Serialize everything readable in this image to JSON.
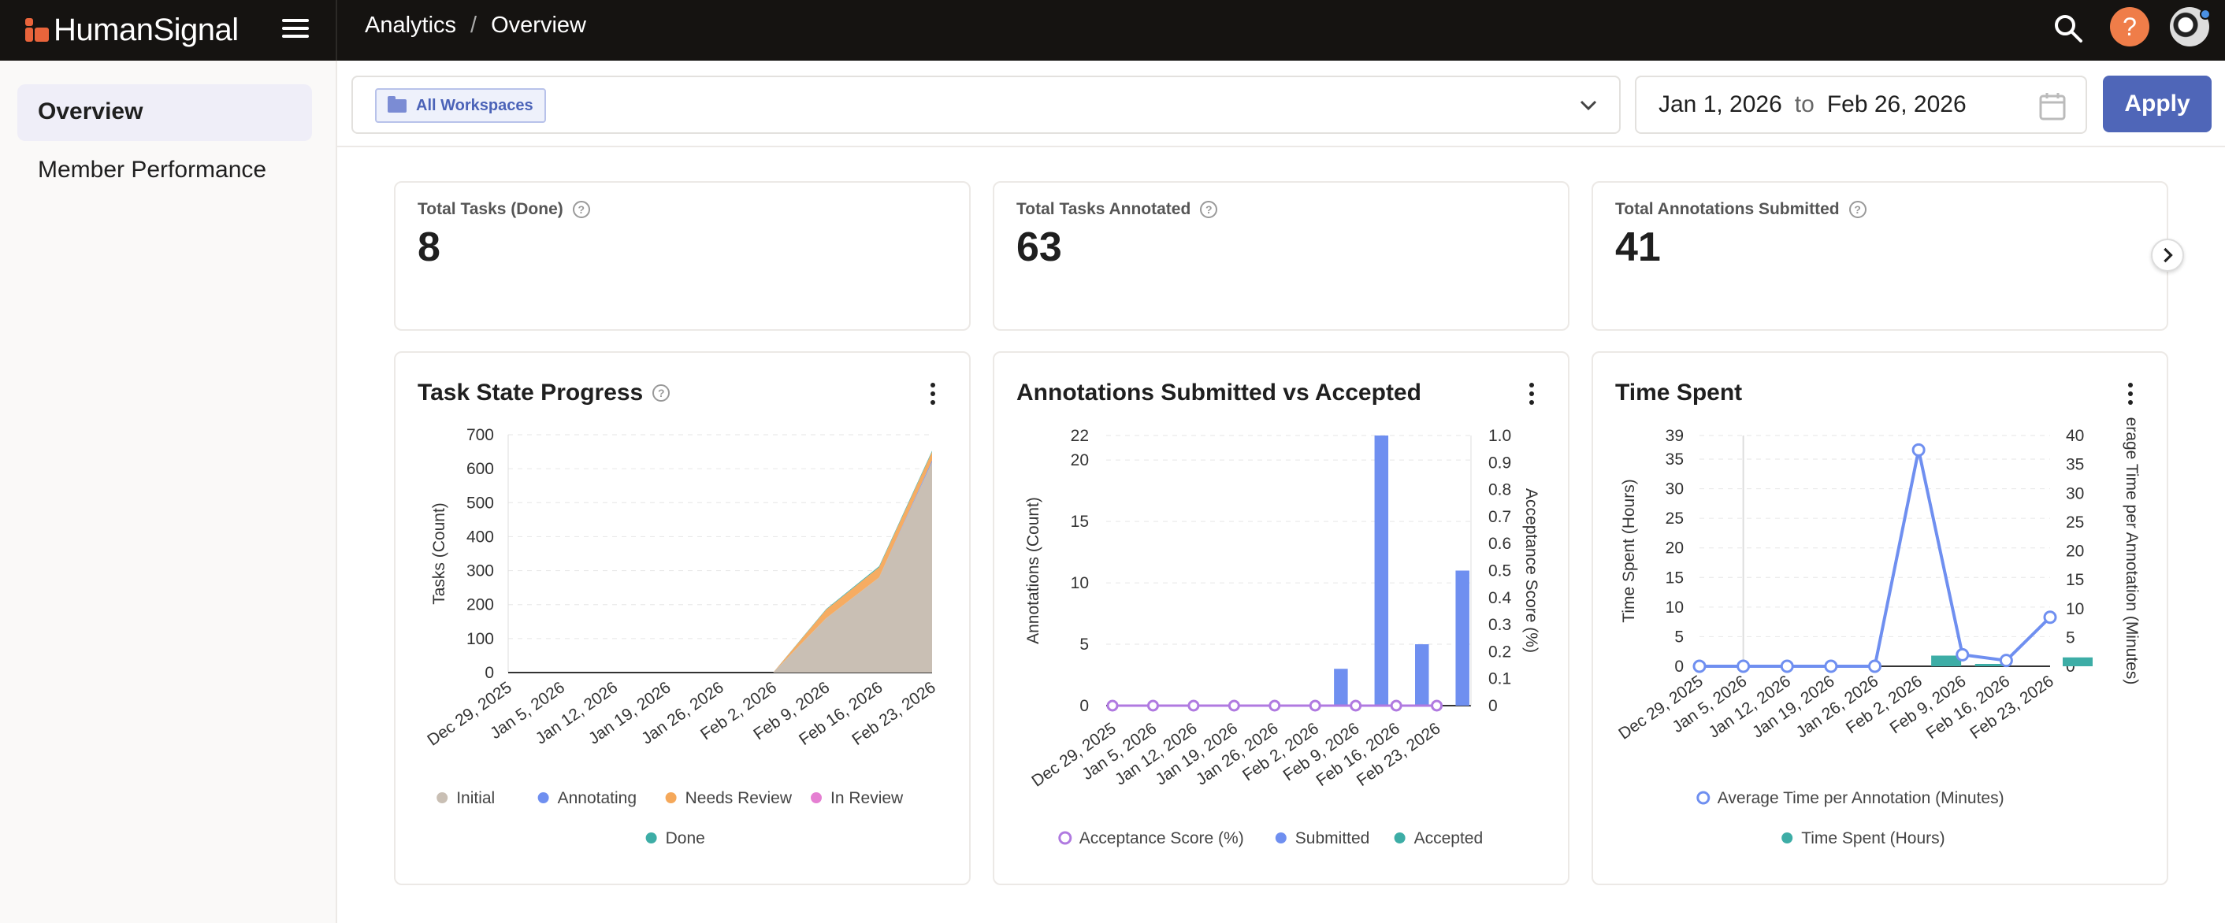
{
  "brand": {
    "name": "HumanSignal"
  },
  "breadcrumb": {
    "section": "Analytics",
    "separator": "/",
    "page": "Overview"
  },
  "sidebar": {
    "items": [
      {
        "label": "Overview"
      },
      {
        "label": "Member Performance"
      }
    ]
  },
  "filters": {
    "workspace": "All Workspaces",
    "date_from": "Jan 1, 2026",
    "date_to_word": "to",
    "date_to": "Feb 26, 2026",
    "apply_label": "Apply"
  },
  "icons": {
    "menu": "hamburger-icon",
    "search": "search-icon",
    "help": "help-icon",
    "calendar": "calendar-icon",
    "folder": "folder-icon",
    "chevron": "chevron-down-icon",
    "next": "chevron-right-icon",
    "more": "more-vertical-icon"
  },
  "colors": {
    "topbar": "#151311",
    "brand_accent": "#e9643b",
    "apply": "#4f66b8",
    "initial": "#c9bfb4",
    "annotating": "#6f8ff0",
    "needs_review": "#f5a85a",
    "in_review": "#e57fd2",
    "done": "#3dada6",
    "acceptance": "#b07ae0",
    "submitted": "#6f8ff0",
    "accepted": "#3dada6",
    "avg_time": "#6f8ff0",
    "time_spent": "#3dada6"
  },
  "kpis": [
    {
      "label": "Total Tasks (Done)",
      "value": "8",
      "help": "?"
    },
    {
      "label": "Total Tasks Annotated",
      "value": "63",
      "help": "?"
    },
    {
      "label": "Total Annotations Submitted",
      "value": "41",
      "help": "?"
    }
  ],
  "charts": {
    "task_state": {
      "title": "Task State Progress",
      "help": "?"
    },
    "annotations": {
      "title": "Annotations Submitted vs Accepted"
    },
    "time_spent": {
      "title": "Time Spent"
    }
  },
  "chart_data": [
    {
      "type": "area",
      "title": "Task State Progress",
      "ylabel": "Tasks (Count)",
      "xlabel": "",
      "x": [
        "Dec 29, 2025",
        "Jan 5, 2026",
        "Jan 12, 2026",
        "Jan 19, 2026",
        "Jan 26, 2026",
        "Feb 2, 2026",
        "Feb 9, 2026",
        "Feb 16, 2026",
        "Feb 23, 2026"
      ],
      "ylim": [
        0,
        700
      ],
      "yticks": [
        0,
        100,
        200,
        300,
        400,
        500,
        600,
        700
      ],
      "series": [
        {
          "name": "Initial",
          "values": [
            0,
            0,
            0,
            0,
            0,
            0,
            160,
            280,
            620
          ]
        },
        {
          "name": "Annotating",
          "values": [
            0,
            0,
            0,
            0,
            0,
            0,
            0,
            0,
            5
          ]
        },
        {
          "name": "Needs Review",
          "values": [
            0,
            0,
            0,
            0,
            0,
            0,
            25,
            30,
            25
          ]
        },
        {
          "name": "In Review",
          "values": [
            0,
            0,
            0,
            0,
            0,
            0,
            0,
            0,
            0
          ]
        },
        {
          "name": "Done",
          "values": [
            0,
            0,
            0,
            0,
            0,
            0,
            2,
            3,
            3
          ]
        }
      ],
      "stacked": true,
      "grid": true,
      "legend": "bottom"
    },
    {
      "type": "bar",
      "title": "Annotations Submitted vs Accepted",
      "ylabel": "Annotations (Count)",
      "y2label": "Acceptance Score (%)",
      "x": [
        "Dec 29, 2025",
        "Jan 5, 2026",
        "Jan 12, 2026",
        "Jan 19, 2026",
        "Jan 26, 2026",
        "Feb 2, 2026",
        "Feb 9, 2026",
        "Feb 16, 2026",
        "Feb 23, 2026"
      ],
      "ylim": [
        0,
        22
      ],
      "yticks": [
        0,
        5,
        10,
        15,
        20,
        22
      ],
      "y2lim": [
        0,
        1
      ],
      "y2ticks": [
        "0",
        "0.1",
        "0.2",
        "0.3",
        "0.4",
        "0.5",
        "0.6",
        "0.7",
        "0.8",
        "0.9",
        "1.0"
      ],
      "series": [
        {
          "name": "Acceptance Score (%)",
          "type": "line",
          "axis": "right",
          "values": [
            0,
            0,
            0,
            0,
            0,
            0,
            0,
            0,
            0
          ]
        },
        {
          "name": "Submitted",
          "type": "bar",
          "values": [
            0,
            0,
            0,
            0,
            0,
            3,
            22,
            5,
            11
          ]
        },
        {
          "name": "Accepted",
          "type": "bar",
          "values": [
            0,
            0,
            0,
            0,
            0,
            0,
            0,
            0,
            0
          ]
        }
      ],
      "grid": true,
      "legend": "bottom"
    },
    {
      "type": "bar",
      "title": "Time Spent",
      "ylabel": "Time Spent (Hours)",
      "y2label": "erage Time per Annotation (Minutes)",
      "x": [
        "Dec 29, 2025",
        "Jan 5, 2026",
        "Jan 12, 2026",
        "Jan 19, 2026",
        "Jan 26, 2026",
        "Feb 2, 2026",
        "Feb 9, 2026",
        "Feb 16, 2026",
        "Feb 23, 2026"
      ],
      "ylim": [
        0,
        39
      ],
      "yticks": [
        0,
        5,
        10,
        15,
        20,
        25,
        30,
        35,
        39
      ],
      "y2lim": [
        0,
        40
      ],
      "y2ticks": [
        0,
        5,
        10,
        15,
        20,
        25,
        30,
        35,
        40
      ],
      "series": [
        {
          "name": "Average Time per Annotation (Minutes)",
          "type": "line",
          "axis": "right",
          "values": [
            0,
            0,
            0,
            0,
            0,
            37.5,
            2,
            1,
            8.5
          ]
        },
        {
          "name": "Time Spent (Hours)",
          "type": "bar",
          "values": [
            0,
            0,
            0,
            0,
            0,
            1.8,
            0.4,
            0,
            1.5
          ]
        }
      ],
      "grid": true,
      "legend": "bottom"
    }
  ]
}
